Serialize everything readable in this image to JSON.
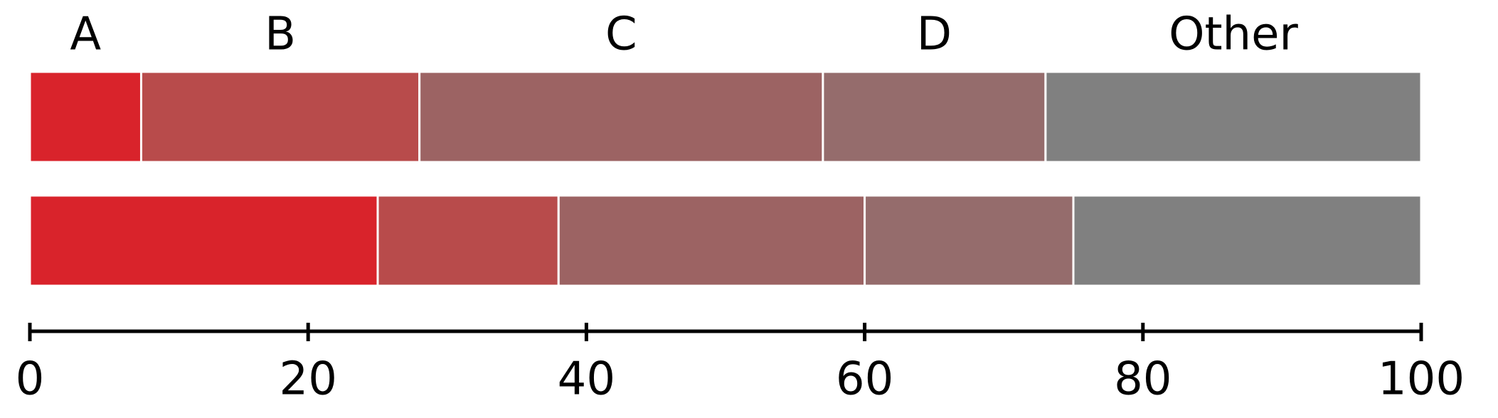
{
  "chart_data": {
    "type": "bar",
    "orientation": "horizontal",
    "stacked": true,
    "categories": [
      null,
      null
    ],
    "series": [
      {
        "name": "A",
        "color": "#d9232b",
        "values": [
          8,
          25
        ]
      },
      {
        "name": "B",
        "color": "#b84b4b",
        "values": [
          20,
          13
        ]
      },
      {
        "name": "C",
        "color": "#9c6363",
        "values": [
          29,
          22
        ]
      },
      {
        "name": "D",
        "color": "#956c6c",
        "values": [
          16,
          15
        ]
      },
      {
        "name": "Other",
        "color": "#808080",
        "values": [
          27,
          25
        ]
      }
    ],
    "xlim": [
      0,
      100
    ],
    "xticks": [
      0,
      20,
      40,
      60,
      80,
      100
    ]
  }
}
